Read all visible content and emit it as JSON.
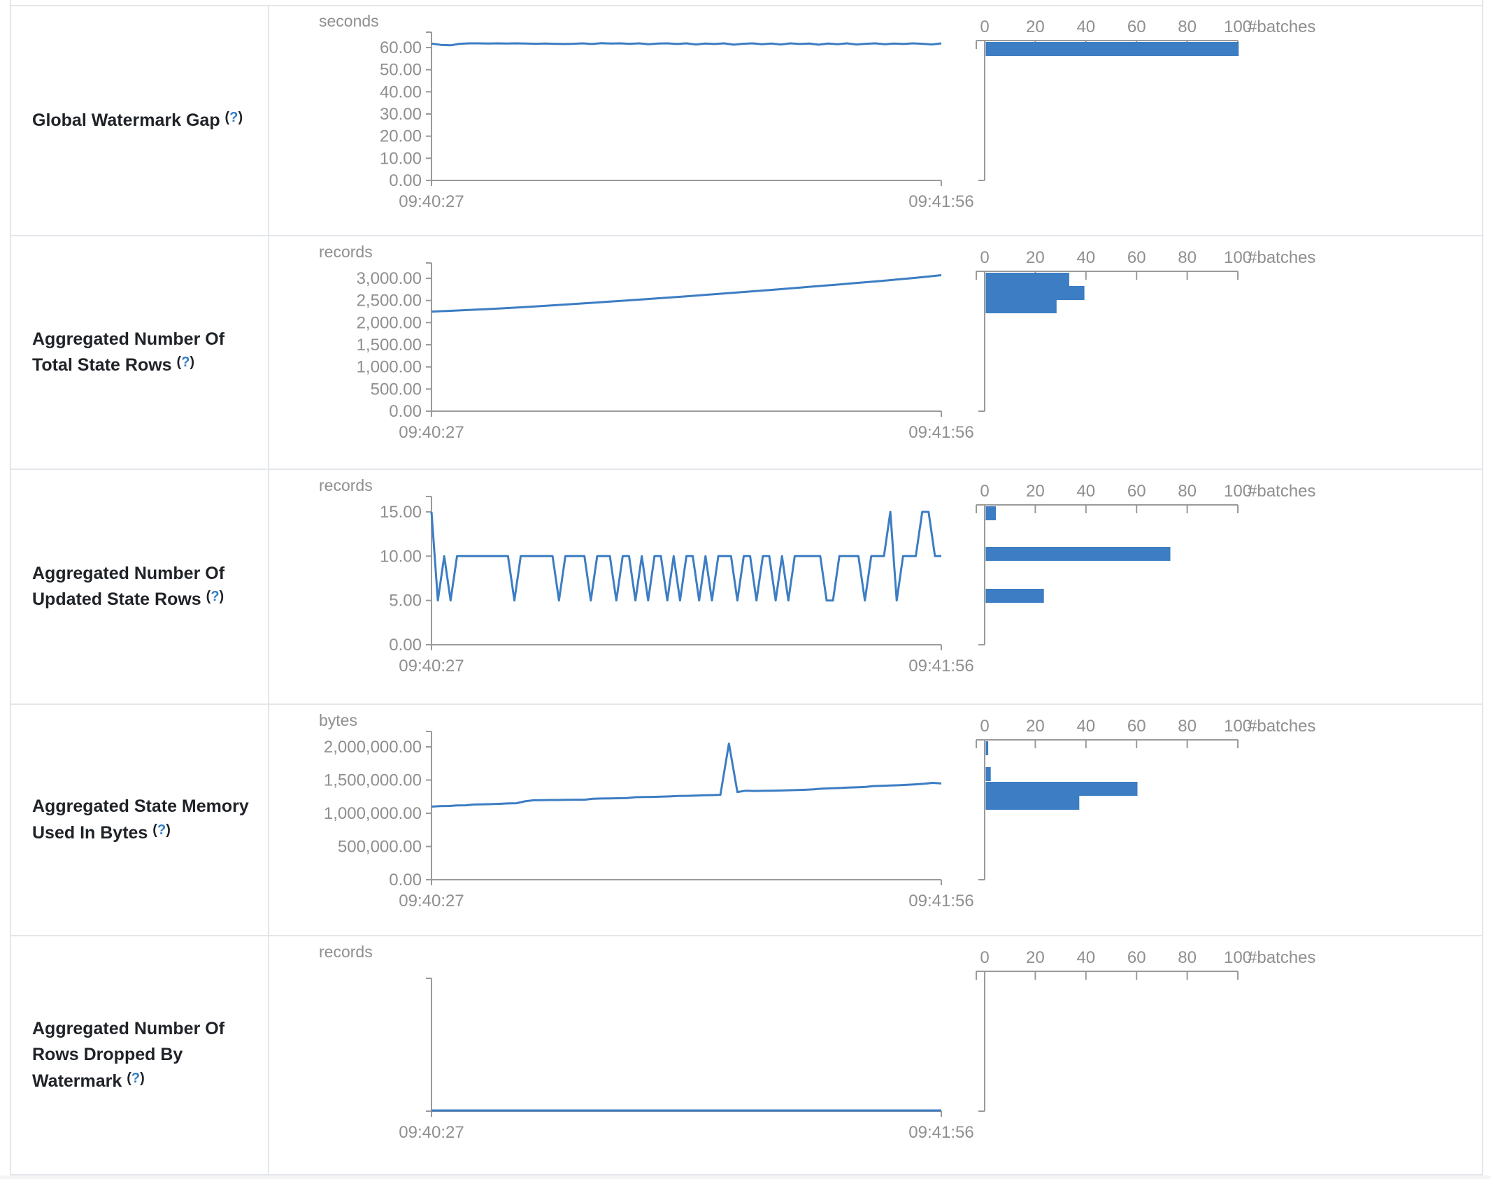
{
  "page": {
    "background": "#ffffff",
    "accent_blue": "#3c7dc3",
    "axis_gray": "#9a9a9a",
    "tick_text_gray": "#8f8f8f",
    "label_color": "#1f2328",
    "help_color": "#2f7dc9",
    "border_color": "#e3e6ea"
  },
  "help_marker": {
    "open": "(",
    "question": "?",
    "close": ")"
  },
  "hist_axis": {
    "ticks": [
      "0",
      "20",
      "40",
      "60",
      "80",
      "100"
    ],
    "label": "#batches",
    "max": 100
  },
  "chart_data": [
    {
      "row_label": "Global Watermark Gap",
      "timeline": {
        "type": "line",
        "title": "seconds",
        "ylabel": "seconds",
        "ytick_labels": [
          "60.00",
          "50.00",
          "40.00",
          "30.00",
          "20.00",
          "10.00",
          "0.00"
        ],
        "ymax": 60,
        "ylim": [
          0,
          60
        ],
        "x_start": "09:40:27",
        "x_end": "09:41:56",
        "values": [
          61.8,
          61.2,
          61.0,
          61.7,
          61.9,
          61.9,
          61.8,
          61.9,
          61.8,
          61.9,
          61.8,
          61.7,
          61.8,
          61.7,
          61.6,
          61.7,
          61.9,
          61.6,
          62.0,
          61.8,
          61.9,
          61.7,
          61.9,
          61.5,
          61.8,
          61.9,
          61.6,
          61.9,
          61.4,
          61.8,
          61.6,
          61.9,
          61.3,
          61.7,
          61.9,
          61.5,
          61.8,
          61.4,
          61.9,
          61.6,
          61.8,
          61.3,
          61.8,
          61.5,
          61.9,
          61.4,
          61.7,
          61.9,
          61.5,
          61.8,
          61.6,
          61.9,
          61.7,
          61.4,
          61.9
        ]
      },
      "histogram": {
        "type": "bar",
        "xlabel": "#batches",
        "total_batches": 100,
        "bars": [
          {
            "bucket": "~60-62 s",
            "count": 100,
            "offset": 2
          }
        ]
      }
    },
    {
      "row_label": "Aggregated Number Of Total State Rows",
      "timeline": {
        "type": "line",
        "title": "records",
        "ylabel": "records",
        "ytick_labels": [
          "3,000.00",
          "2,500.00",
          "2,000.00",
          "1,500.00",
          "1,000.00",
          "500.00",
          "0.00"
        ],
        "ymax": 3000,
        "ylim": [
          0,
          3000
        ],
        "x_start": "09:40:27",
        "x_end": "09:41:56",
        "values": [
          2248,
          2262,
          2277,
          2293,
          2310,
          2328,
          2347,
          2367,
          2388,
          2410,
          2432,
          2454,
          2477,
          2500,
          2523,
          2547,
          2571,
          2595,
          2620,
          2645,
          2670,
          2696,
          2722,
          2748,
          2775,
          2802,
          2829,
          2857,
          2885,
          2913,
          2942,
          2971,
          3001,
          3035,
          3071
        ]
      },
      "histogram": {
        "type": "bar",
        "xlabel": "#batches",
        "total_batches": 100,
        "bars": [
          {
            "bucket": "~2850-3080 records",
            "count": 33,
            "offset": 2
          },
          {
            "bucket": "~2600-2850 records",
            "count": 39,
            "offset": 21
          },
          {
            "bucket": "~2250-2600 records",
            "count": 28,
            "offset": 40
          }
        ]
      }
    },
    {
      "row_label": "Aggregated Number Of Updated State Rows",
      "timeline": {
        "type": "line",
        "title": "records",
        "ylabel": "records",
        "ytick_labels": [
          "15.00",
          "10.00",
          "5.00",
          "0.00"
        ],
        "ymax": 15,
        "ylim": [
          0,
          15
        ],
        "x_start": "09:40:27",
        "x_end": "09:41:56",
        "values": [
          15,
          5,
          10,
          5,
          10,
          10,
          10,
          10,
          10,
          10,
          10,
          10,
          10,
          5,
          10,
          10,
          10,
          10,
          10,
          10,
          5,
          10,
          10,
          10,
          10,
          5,
          10,
          10,
          10,
          5,
          10,
          10,
          5,
          10,
          5,
          10,
          10,
          5,
          10,
          5,
          10,
          10,
          5,
          10,
          5,
          10,
          10,
          10,
          5,
          10,
          10,
          5,
          10,
          10,
          5,
          10,
          5,
          10,
          10,
          10,
          10,
          10,
          5,
          5,
          10,
          10,
          10,
          10,
          5,
          10,
          10,
          10,
          15,
          5,
          10,
          10,
          10,
          15,
          15,
          10,
          10
        ]
      },
      "histogram": {
        "type": "bar",
        "xlabel": "#batches",
        "total_batches": 100,
        "bars": [
          {
            "bucket": "15 records",
            "count": 4,
            "offset": 2
          },
          {
            "bucket": "10 records",
            "count": 73,
            "offset": 60
          },
          {
            "bucket": "5 records",
            "count": 23,
            "offset": 120
          }
        ]
      }
    },
    {
      "row_label": "Aggregated State Memory Used In Bytes",
      "timeline": {
        "type": "line",
        "title": "bytes",
        "ylabel": "bytes",
        "ytick_labels": [
          "2,000,000.00",
          "1,500,000.00",
          "1,000,000.00",
          "500,000.00",
          "0.00"
        ],
        "ymax": 2000000,
        "ylim": [
          0,
          2000000
        ],
        "x_start": "09:40:27",
        "x_end": "09:41:56",
        "values": [
          1100000,
          1108000,
          1110000,
          1118000,
          1120000,
          1132000,
          1134000,
          1138000,
          1142000,
          1148000,
          1152000,
          1180000,
          1196000,
          1198000,
          1200000,
          1200000,
          1202000,
          1204000,
          1204000,
          1218000,
          1222000,
          1224000,
          1226000,
          1228000,
          1242000,
          1244000,
          1246000,
          1250000,
          1254000,
          1260000,
          1262000,
          1266000,
          1270000,
          1274000,
          1278000,
          2050000,
          1320000,
          1340000,
          1336000,
          1338000,
          1340000,
          1342000,
          1346000,
          1350000,
          1354000,
          1360000,
          1372000,
          1376000,
          1380000,
          1386000,
          1390000,
          1396000,
          1410000,
          1414000,
          1418000,
          1422000,
          1428000,
          1436000,
          1444000,
          1458000,
          1448000
        ]
      },
      "histogram": {
        "type": "bar",
        "xlabel": "#batches",
        "total_batches": 100,
        "bars": [
          {
            "bucket": "~2,050,000 bytes",
            "count": 1,
            "offset": 2
          },
          {
            "bucket": "~1,650,000 bytes",
            "count": 2,
            "offset": 39
          },
          {
            "bucket": "~1,300,000-1,450,000 bytes",
            "count": 60,
            "offset": 60
          },
          {
            "bucket": "~1,100,000-1,300,000 bytes",
            "count": 37,
            "offset": 80
          }
        ]
      }
    },
    {
      "row_label": "Aggregated Number Of Rows Dropped By Watermark",
      "timeline": {
        "type": "line",
        "title": "records",
        "ylabel": "records",
        "ytick_labels": [],
        "ymax": null,
        "ylim": [
          0,
          0
        ],
        "x_start": "09:40:27",
        "x_end": "09:41:56",
        "values": [
          0,
          0,
          0
        ]
      },
      "histogram": {
        "type": "bar",
        "xlabel": "#batches",
        "total_batches": 0,
        "bars": []
      }
    }
  ]
}
